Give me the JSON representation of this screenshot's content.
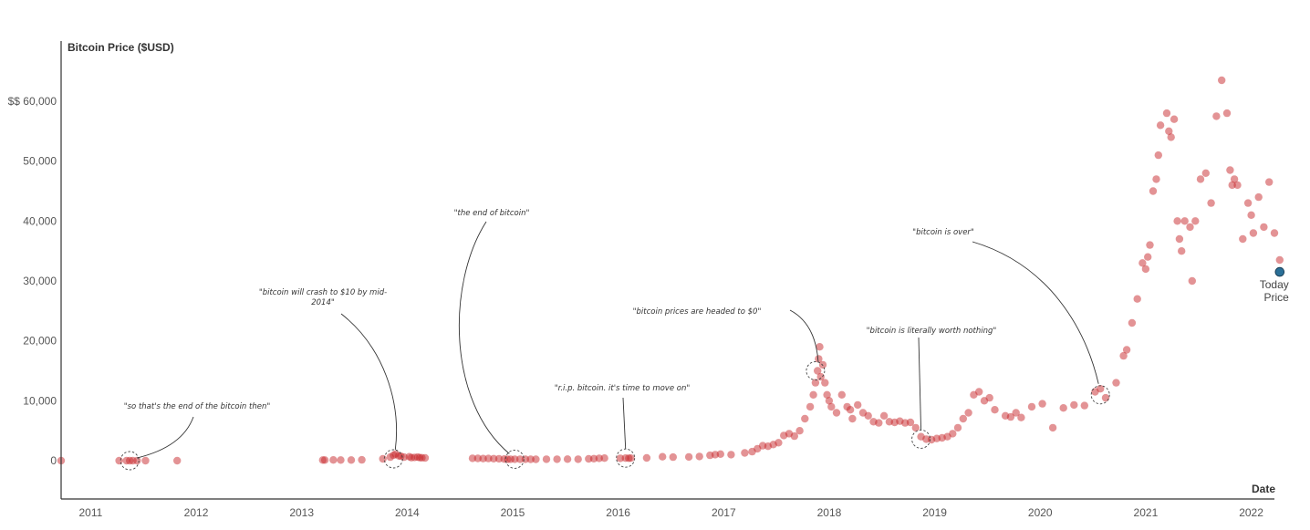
{
  "chart_data": {
    "type": "scatter",
    "title": "",
    "ylabel": "Bitcoin Price ($USD)",
    "xlabel": "Date",
    "y_tick_labels": [
      "$$ 60,000",
      "50,000",
      "40,000",
      "30,000",
      "20,000",
      "10,000",
      "0"
    ],
    "y_ticks": [
      60000,
      50000,
      40000,
      30000,
      20000,
      10000,
      0
    ],
    "x_tick_labels": [
      "2011",
      "2012",
      "2013",
      "2014",
      "2015",
      "2016",
      "2017",
      "2018",
      "2019",
      "2020",
      "2021",
      "2022"
    ],
    "x_ticks": [
      2011,
      2012,
      2013,
      2014,
      2015,
      2016,
      2017,
      2018,
      2019,
      2020,
      2021,
      2022
    ],
    "xlim": [
      2010.8,
      2022.3
    ],
    "ylim": [
      -6500,
      70000
    ],
    "grid": false,
    "colors": {
      "points": "#c8282c",
      "today": "#2a6f97",
      "axis": "#333333"
    },
    "points": [
      [
        2010.8,
        0
      ],
      [
        2011.35,
        0
      ],
      [
        2011.42,
        0
      ],
      [
        2011.45,
        0
      ],
      [
        2011.48,
        0
      ],
      [
        2011.52,
        0
      ],
      [
        2011.6,
        0
      ],
      [
        2011.9,
        0
      ],
      [
        2013.28,
        100
      ],
      [
        2013.3,
        110
      ],
      [
        2013.38,
        120
      ],
      [
        2013.45,
        110
      ],
      [
        2013.55,
        100
      ],
      [
        2013.65,
        130
      ],
      [
        2013.85,
        300
      ],
      [
        2013.92,
        600
      ],
      [
        2013.95,
        900
      ],
      [
        2013.97,
        1100
      ],
      [
        2014.0,
        800
      ],
      [
        2014.02,
        750
      ],
      [
        2014.05,
        600
      ],
      [
        2014.1,
        650
      ],
      [
        2014.12,
        500
      ],
      [
        2014.15,
        550
      ],
      [
        2014.18,
        600
      ],
      [
        2014.2,
        500
      ],
      [
        2014.22,
        480
      ],
      [
        2014.25,
        450
      ],
      [
        2014.7,
        400
      ],
      [
        2014.75,
        380
      ],
      [
        2014.8,
        350
      ],
      [
        2014.85,
        360
      ],
      [
        2014.9,
        330
      ],
      [
        2014.95,
        320
      ],
      [
        2015.0,
        280
      ],
      [
        2015.03,
        230
      ],
      [
        2015.06,
        250
      ],
      [
        2015.1,
        240
      ],
      [
        2015.15,
        250
      ],
      [
        2015.2,
        240
      ],
      [
        2015.25,
        230
      ],
      [
        2015.3,
        230
      ],
      [
        2015.4,
        240
      ],
      [
        2015.5,
        250
      ],
      [
        2015.6,
        260
      ],
      [
        2015.7,
        240
      ],
      [
        2015.8,
        300
      ],
      [
        2015.85,
        330
      ],
      [
        2015.9,
        400
      ],
      [
        2015.95,
        430
      ],
      [
        2016.1,
        400
      ],
      [
        2016.15,
        420
      ],
      [
        2016.18,
        410
      ],
      [
        2016.2,
        430
      ],
      [
        2016.35,
        450
      ],
      [
        2016.5,
        650
      ],
      [
        2016.6,
        600
      ],
      [
        2016.75,
        630
      ],
      [
        2016.85,
        700
      ],
      [
        2016.95,
        900
      ],
      [
        2017.0,
        1000
      ],
      [
        2017.05,
        1100
      ],
      [
        2017.15,
        1000
      ],
      [
        2017.28,
        1300
      ],
      [
        2017.35,
        1500
      ],
      [
        2017.4,
        2000
      ],
      [
        2017.45,
        2500
      ],
      [
        2017.5,
        2400
      ],
      [
        2017.55,
        2700
      ],
      [
        2017.6,
        3000
      ],
      [
        2017.65,
        4200
      ],
      [
        2017.7,
        4500
      ],
      [
        2017.75,
        4100
      ],
      [
        2017.8,
        5000
      ],
      [
        2017.85,
        7000
      ],
      [
        2017.9,
        9000
      ],
      [
        2017.93,
        11000
      ],
      [
        2017.95,
        13000
      ],
      [
        2017.97,
        15000
      ],
      [
        2017.98,
        17000
      ],
      [
        2017.99,
        19000
      ],
      [
        2018.0,
        14000
      ],
      [
        2018.02,
        16000
      ],
      [
        2018.04,
        13000
      ],
      [
        2018.06,
        11000
      ],
      [
        2018.08,
        10000
      ],
      [
        2018.1,
        9000
      ],
      [
        2018.15,
        8000
      ],
      [
        2018.2,
        11000
      ],
      [
        2018.25,
        9000
      ],
      [
        2018.28,
        8500
      ],
      [
        2018.3,
        7000
      ],
      [
        2018.35,
        9300
      ],
      [
        2018.4,
        8000
      ],
      [
        2018.45,
        7500
      ],
      [
        2018.5,
        6500
      ],
      [
        2018.55,
        6300
      ],
      [
        2018.6,
        7500
      ],
      [
        2018.65,
        6500
      ],
      [
        2018.7,
        6400
      ],
      [
        2018.75,
        6600
      ],
      [
        2018.8,
        6300
      ],
      [
        2018.85,
        6400
      ],
      [
        2018.9,
        5500
      ],
      [
        2018.95,
        4000
      ],
      [
        2019.0,
        3600
      ],
      [
        2019.05,
        3500
      ],
      [
        2019.1,
        3700
      ],
      [
        2019.15,
        3800
      ],
      [
        2019.2,
        4000
      ],
      [
        2019.25,
        4500
      ],
      [
        2019.3,
        5500
      ],
      [
        2019.35,
        7000
      ],
      [
        2019.4,
        8000
      ],
      [
        2019.45,
        11000
      ],
      [
        2019.5,
        11500
      ],
      [
        2019.55,
        10000
      ],
      [
        2019.6,
        10500
      ],
      [
        2019.65,
        8500
      ],
      [
        2019.75,
        7500
      ],
      [
        2019.8,
        7300
      ],
      [
        2019.85,
        8000
      ],
      [
        2019.9,
        7200
      ],
      [
        2020.0,
        9000
      ],
      [
        2020.1,
        9500
      ],
      [
        2020.2,
        5500
      ],
      [
        2020.3,
        8800
      ],
      [
        2020.4,
        9300
      ],
      [
        2020.5,
        9200
      ],
      [
        2020.6,
        11500
      ],
      [
        2020.65,
        12000
      ],
      [
        2020.7,
        10500
      ],
      [
        2020.8,
        13000
      ],
      [
        2020.87,
        17500
      ],
      [
        2020.9,
        18500
      ],
      [
        2020.95,
        23000
      ],
      [
        2021.0,
        27000
      ],
      [
        2021.05,
        33000
      ],
      [
        2021.08,
        32000
      ],
      [
        2021.1,
        34000
      ],
      [
        2021.12,
        36000
      ],
      [
        2021.15,
        45000
      ],
      [
        2021.18,
        47000
      ],
      [
        2021.2,
        51000
      ],
      [
        2021.22,
        56000
      ],
      [
        2021.28,
        58000
      ],
      [
        2021.3,
        55000
      ],
      [
        2021.32,
        54000
      ],
      [
        2021.35,
        57000
      ],
      [
        2021.38,
        40000
      ],
      [
        2021.4,
        37000
      ],
      [
        2021.42,
        35000
      ],
      [
        2021.45,
        40000
      ],
      [
        2021.5,
        39000
      ],
      [
        2021.52,
        30000
      ],
      [
        2021.55,
        40000
      ],
      [
        2021.6,
        47000
      ],
      [
        2021.65,
        48000
      ],
      [
        2021.7,
        43000
      ],
      [
        2021.75,
        57500
      ],
      [
        2021.8,
        63500
      ],
      [
        2021.85,
        58000
      ],
      [
        2021.88,
        48500
      ],
      [
        2021.9,
        46000
      ],
      [
        2021.92,
        47000
      ],
      [
        2021.95,
        46000
      ],
      [
        2022.0,
        37000
      ],
      [
        2022.05,
        43000
      ],
      [
        2022.08,
        41000
      ],
      [
        2022.1,
        38000
      ],
      [
        2022.15,
        44000
      ],
      [
        2022.2,
        39000
      ],
      [
        2022.25,
        46500
      ],
      [
        2022.3,
        38000
      ],
      [
        2022.35,
        33500
      ]
    ],
    "today_point": {
      "x": 2022.35,
      "y": 31500,
      "label_line1": "Today",
      "label_line2": "Price"
    },
    "annotations": [
      {
        "text_lines": [
          "\"so that's the end of the bitcoin then\""
        ],
        "x": 2011.45,
        "y": 0
      },
      {
        "text_lines": [
          "\"bitcoin will crash to $10 by mid-",
          "2014\""
        ],
        "x": 2013.95,
        "y": 300
      },
      {
        "text_lines": [
          "\"the end of bitcoin\""
        ],
        "x": 2015.1,
        "y": 250
      },
      {
        "text_lines": [
          "\"r.i.p. bitcoin. it's time to move on\""
        ],
        "x": 2016.15,
        "y": 420
      },
      {
        "text_lines": [
          "\"bitcoin prices are headed to $0\""
        ],
        "x": 2017.95,
        "y": 15000
      },
      {
        "text_lines": [
          "\"bitcoin is literally worth nothing\""
        ],
        "x": 2018.95,
        "y": 3600
      },
      {
        "text_lines": [
          "\"bitcoin is over\""
        ],
        "x": 2020.65,
        "y": 11000
      }
    ]
  }
}
